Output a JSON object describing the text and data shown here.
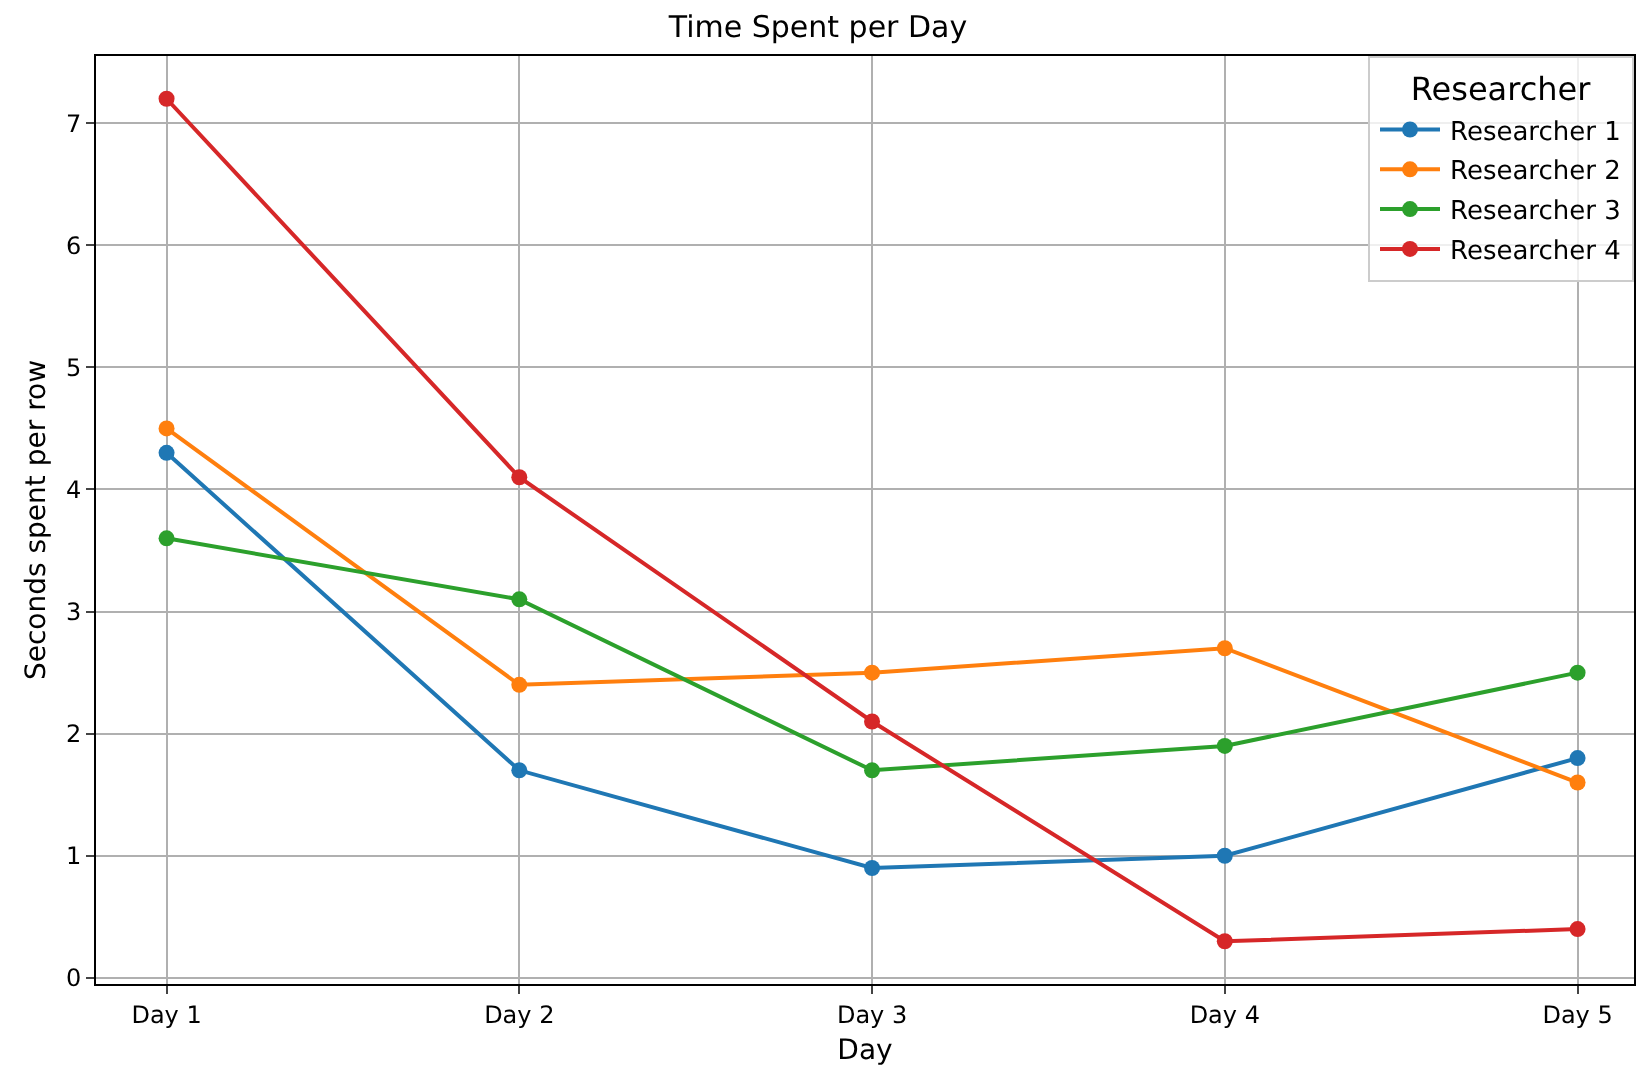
{
  "chart_data": {
    "type": "line",
    "title": "Time Spent per Day",
    "xlabel": "Day",
    "ylabel": "Seconds spent per row",
    "legend_title": "Researcher",
    "categories": [
      "Day 1",
      "Day 2",
      "Day 3",
      "Day 4",
      "Day 5"
    ],
    "series": [
      {
        "name": "Researcher 1",
        "color": "#1f77b4",
        "values": [
          4.3,
          1.7,
          0.9,
          1.0,
          1.8
        ]
      },
      {
        "name": "Researcher 2",
        "color": "#ff7f0e",
        "values": [
          4.5,
          2.4,
          2.5,
          2.7,
          1.6
        ]
      },
      {
        "name": "Researcher 3",
        "color": "#2ca02c",
        "values": [
          3.6,
          3.1,
          1.7,
          1.9,
          2.5
        ]
      },
      {
        "name": "Researcher 4",
        "color": "#d62728",
        "values": [
          7.2,
          4.1,
          2.1,
          0.3,
          0.4
        ]
      }
    ],
    "ylim": [
      -0.05,
      7.55
    ],
    "yticks": [
      0,
      1,
      2,
      3,
      4,
      5,
      6,
      7
    ],
    "grid": true,
    "legend": "top right",
    "marker": "circle",
    "line_style": "solid"
  }
}
